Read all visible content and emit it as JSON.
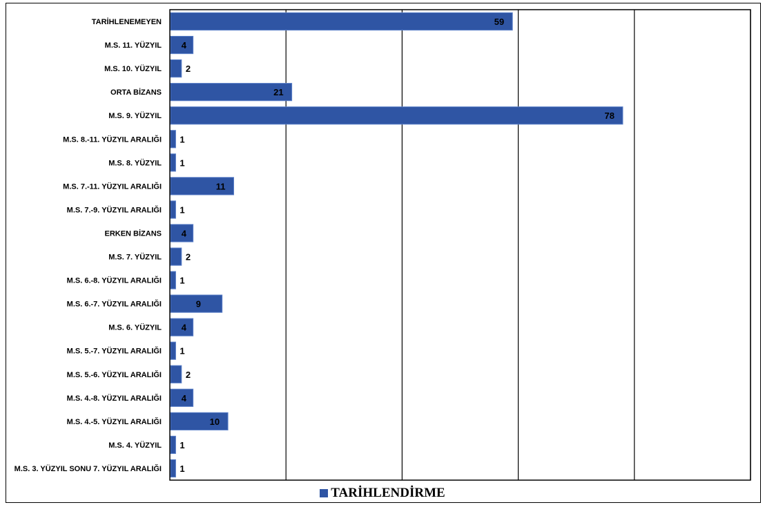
{
  "chart_data": {
    "type": "bar",
    "orientation": "horizontal",
    "categories": [
      "TARİHLENEMEYEN",
      "M.S. 11. YÜZYIL",
      "M.S. 10. YÜZYIL",
      "ORTA BİZANS",
      "M.S. 9. YÜZYIL",
      "M.S. 8.-11. YÜZYIL ARALIĞI",
      "M.S. 8. YÜZYIL",
      "M.S. 7.-11. YÜZYIL ARALIĞI",
      "M.S. 7.-9. YÜZYIL ARALIĞI",
      "ERKEN BİZANS",
      "M.S. 7. YÜZYIL",
      "M.S. 6.-8. YÜZYIL ARALIĞI",
      "M.S. 6.-7. YÜZYIL ARALIĞI",
      "M.S. 6. YÜZYIL",
      "M.S. 5.-7. YÜZYIL ARALIĞI",
      "M.S. 5.-6. YÜZYIL ARALIĞI",
      "M.S. 4.-8. YÜZYIL ARALIĞI",
      "M.S. 4.-5. YÜZYIL ARALIĞI",
      "M.S. 4. YÜZYIL",
      "M.S. 3. YÜZYIL SONU 7. YÜZYIL ARALIĞI"
    ],
    "series": [
      {
        "name": "TARİHLENDİRME",
        "values": [
          59,
          4,
          2,
          21,
          78,
          1,
          1,
          11,
          1,
          4,
          2,
          1,
          9,
          4,
          1,
          2,
          4,
          10,
          1,
          1
        ],
        "color": "#2F55A4"
      }
    ],
    "xlim": [
      0,
      100
    ],
    "x_gridlines": [
      20,
      40,
      60,
      80,
      100
    ],
    "x_tick_labels_shown": false,
    "grid": true,
    "legend_position": "bottom"
  }
}
